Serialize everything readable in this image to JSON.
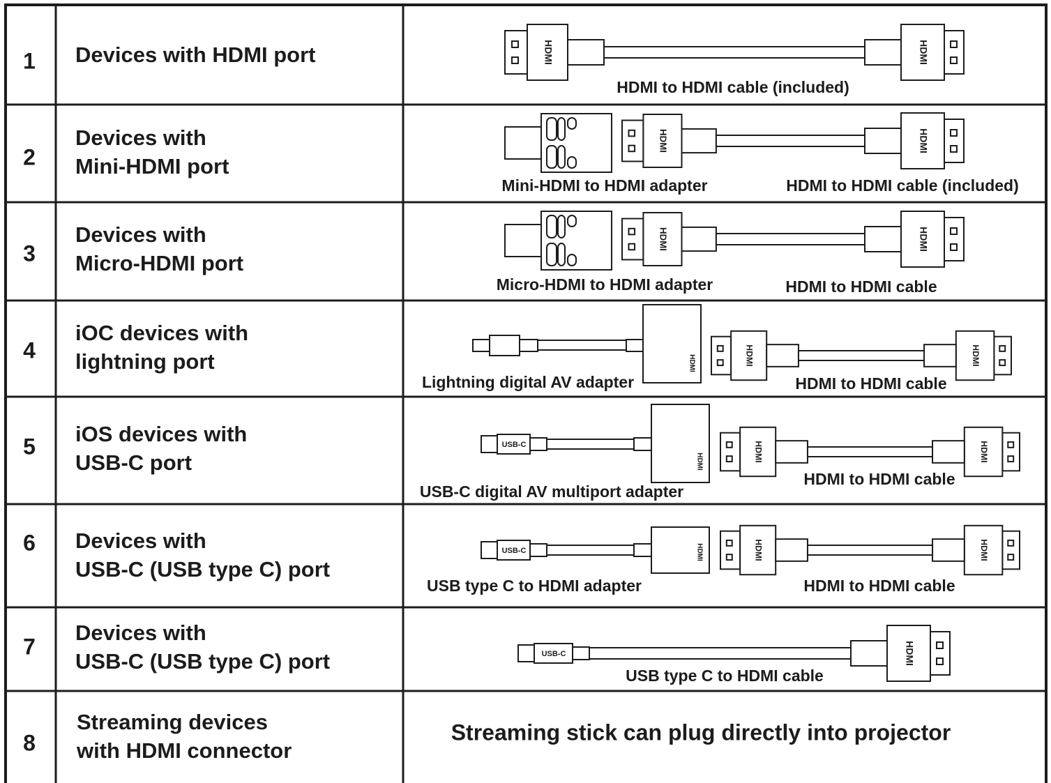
{
  "rows": [
    {
      "number": "1",
      "device": [
        "Devices with HDMI port"
      ],
      "captions": [
        "HDMI to HDMI cable (included)"
      ]
    },
    {
      "number": "2",
      "device": [
        "Devices with",
        "Mini-HDMI port"
      ],
      "captions": [
        "Mini-HDMI to HDMI adapter",
        "HDMI to HDMI cable (included)"
      ]
    },
    {
      "number": "3",
      "device": [
        "Devices with",
        "Micro-HDMI port"
      ],
      "captions": [
        "Micro-HDMI to HDMI adapter",
        "HDMI to HDMI cable"
      ]
    },
    {
      "number": "4",
      "device": [
        "iOC devices with",
        "lightning port"
      ],
      "captions": [
        "Lightning digital AV adapter",
        "HDMI to HDMI cable"
      ]
    },
    {
      "number": "5",
      "device": [
        "iOS devices with",
        "USB-C port"
      ],
      "captions": [
        "USB-C digital AV multiport adapter",
        "HDMI to HDMI cable"
      ]
    },
    {
      "number": "6",
      "device": [
        "Devices with",
        "USB-C (USB type C) port"
      ],
      "captions": [
        "USB type C to HDMI adapter",
        "HDMI to HDMI cable"
      ]
    },
    {
      "number": "7",
      "device": [
        "Devices with",
        "USB-C (USB type C) port"
      ],
      "captions": [
        "USB type C to HDMI cable"
      ]
    },
    {
      "number": "8",
      "device": [
        "Streaming devices",
        "with HDMI connector"
      ],
      "captions": [
        "Streaming stick can plug directly into projector"
      ]
    }
  ],
  "connector_labels": {
    "hdmi": "HDMI",
    "usb_c": "USB-C"
  }
}
